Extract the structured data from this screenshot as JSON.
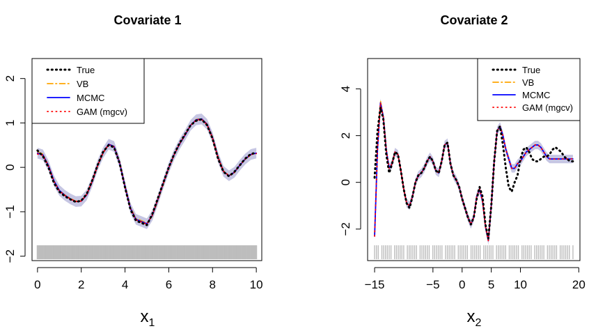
{
  "chart_data": [
    {
      "type": "line",
      "title": "Covariate 1",
      "xlabel": "x",
      "xlabel_sub": "1",
      "ylabel": "",
      "xlim": [
        0,
        10
      ],
      "ylim": [
        -2,
        2
      ],
      "x_ticks": [
        "0",
        "2",
        "4",
        "6",
        "8",
        "10"
      ],
      "y_ticks": [
        "−2",
        "−1",
        "0",
        "1",
        "2"
      ],
      "grid": false,
      "legend_position": "top-left",
      "x": [
        0.0,
        0.25,
        0.5,
        0.75,
        1.0,
        1.25,
        1.5,
        1.75,
        2.0,
        2.25,
        2.5,
        2.75,
        3.0,
        3.25,
        3.5,
        3.75,
        4.0,
        4.25,
        4.5,
        4.75,
        5.0,
        5.25,
        5.5,
        5.75,
        6.0,
        6.25,
        6.5,
        6.75,
        7.0,
        7.25,
        7.5,
        7.75,
        8.0,
        8.25,
        8.5,
        8.75,
        9.0,
        9.25,
        9.5,
        9.75,
        10.0
      ],
      "series": [
        {
          "name": "True",
          "style": "dotted",
          "color": "#000000",
          "values": [
            0.38,
            0.25,
            0.0,
            -0.35,
            -0.55,
            -0.65,
            -0.72,
            -0.78,
            -0.75,
            -0.6,
            -0.3,
            0.05,
            0.35,
            0.5,
            0.45,
            0.1,
            -0.45,
            -0.95,
            -1.2,
            -1.25,
            -1.3,
            -1.05,
            -0.7,
            -0.35,
            0.0,
            0.3,
            0.55,
            0.75,
            0.95,
            1.05,
            1.08,
            0.95,
            0.65,
            0.2,
            -0.1,
            -0.2,
            -0.1,
            0.05,
            0.2,
            0.3,
            0.33
          ]
        },
        {
          "name": "VB",
          "style": "dotdash",
          "color": "#FFA500",
          "values": [
            0.35,
            0.3,
            0.05,
            -0.3,
            -0.52,
            -0.62,
            -0.7,
            -0.76,
            -0.75,
            -0.62,
            -0.32,
            0.05,
            0.32,
            0.52,
            0.48,
            0.12,
            -0.42,
            -0.9,
            -1.15,
            -1.2,
            -1.25,
            -1.1,
            -0.75,
            -0.38,
            -0.02,
            0.28,
            0.52,
            0.72,
            0.95,
            1.08,
            1.1,
            0.98,
            0.68,
            0.25,
            -0.08,
            -0.18,
            -0.12,
            0.05,
            0.18,
            0.28,
            0.32
          ]
        },
        {
          "name": "MCMC",
          "style": "solid",
          "color": "#0000FF",
          "values": [
            0.32,
            0.28,
            0.04,
            -0.3,
            -0.52,
            -0.63,
            -0.71,
            -0.77,
            -0.76,
            -0.62,
            -0.32,
            0.05,
            0.33,
            0.52,
            0.47,
            0.11,
            -0.43,
            -0.92,
            -1.17,
            -1.22,
            -1.27,
            -1.08,
            -0.73,
            -0.36,
            -0.01,
            0.29,
            0.53,
            0.73,
            0.95,
            1.07,
            1.09,
            0.97,
            0.67,
            0.23,
            -0.09,
            -0.19,
            -0.11,
            0.05,
            0.19,
            0.29,
            0.32
          ]
        },
        {
          "name": "GAM (mgcv)",
          "style": "dotted",
          "color": "#FF0000",
          "values": [
            0.3,
            0.27,
            0.03,
            -0.31,
            -0.53,
            -0.63,
            -0.71,
            -0.77,
            -0.76,
            -0.61,
            -0.31,
            0.04,
            0.33,
            0.51,
            0.46,
            0.11,
            -0.44,
            -0.93,
            -1.18,
            -1.23,
            -1.28,
            -1.07,
            -0.72,
            -0.36,
            -0.01,
            0.29,
            0.54,
            0.74,
            0.95,
            1.06,
            1.08,
            0.96,
            0.66,
            0.22,
            -0.09,
            -0.19,
            -0.11,
            0.05,
            0.19,
            0.29,
            0.31
          ]
        }
      ],
      "band_width": 0.12,
      "rug_start": 0,
      "rug_end": 10,
      "legend": [
        "True",
        "VB",
        "MCMC",
        "GAM (mgcv)"
      ]
    },
    {
      "type": "line",
      "title": "Covariate 2",
      "xlabel": "x",
      "xlabel_sub": "2",
      "ylabel": "",
      "xlim": [
        -15,
        20
      ],
      "ylim": [
        -3,
        5
      ],
      "x_ticks": [
        "−15",
        "−5",
        "0",
        "5",
        "10",
        "20"
      ],
      "y_ticks": [
        "−2",
        "0",
        "2",
        "4"
      ],
      "grid": false,
      "legend_position": "top-right",
      "x": [
        -15,
        -14.5,
        -14,
        -13.5,
        -13,
        -12.5,
        -12,
        -11.5,
        -11,
        -10.5,
        -10,
        -9.5,
        -9,
        -8.5,
        -8,
        -7.5,
        -7,
        -6.5,
        -6,
        -5.5,
        -5,
        -4.5,
        -4,
        -3.5,
        -3,
        -2.5,
        -2,
        -1.5,
        -1,
        -0.5,
        0,
        0.5,
        1,
        1.5,
        2,
        2.5,
        3,
        3.5,
        4,
        4.5,
        5,
        5.5,
        6,
        6.5,
        7,
        7.5,
        8,
        8.5,
        9,
        9.5,
        10,
        10.5,
        11,
        11.5,
        12,
        12.5,
        13,
        13.5,
        14,
        14.5,
        15,
        15.5,
        16,
        16.5,
        17,
        17.5,
        18,
        18.5,
        19
      ],
      "series": [
        {
          "name": "True",
          "style": "dotted",
          "color": "#000000",
          "values": [
            0.2,
            2.2,
            3.2,
            2.7,
            1.2,
            0.4,
            0.8,
            1.3,
            1.2,
            0.5,
            -0.3,
            -0.9,
            -1.1,
            -0.6,
            0.0,
            0.3,
            0.4,
            0.6,
            0.9,
            1.1,
            0.9,
            0.5,
            0.4,
            0.9,
            1.6,
            1.7,
            0.8,
            0.3,
            0.1,
            -0.2,
            -0.7,
            -1.1,
            -1.5,
            -1.8,
            -1.5,
            -0.7,
            -0.2,
            -0.6,
            -1.8,
            -2.4,
            -1.0,
            0.9,
            2.2,
            2.4,
            1.6,
            0.6,
            -0.2,
            -0.4,
            0.0,
            0.3,
            1.0,
            1.4,
            1.5,
            1.3,
            1.0,
            0.9,
            0.9,
            1.0,
            1.1,
            1.1,
            1.2,
            1.4,
            1.5,
            1.4,
            1.3,
            1.1,
            1.0,
            0.9,
            0.9
          ]
        },
        {
          "name": "VB",
          "style": "dotdash",
          "color": "#FFA500",
          "values": [
            -2.2,
            1.5,
            3.5,
            2.8,
            1.4,
            0.6,
            0.8,
            1.3,
            1.2,
            0.5,
            -0.3,
            -0.9,
            -1.0,
            -0.6,
            0.0,
            0.3,
            0.4,
            0.6,
            0.9,
            1.1,
            0.9,
            0.5,
            0.4,
            0.9,
            1.6,
            1.7,
            0.8,
            0.3,
            0.1,
            -0.2,
            -0.7,
            -1.1,
            -1.5,
            -1.8,
            -1.5,
            -0.6,
            -0.3,
            -0.8,
            -1.9,
            -2.5,
            -1.0,
            0.9,
            2.2,
            2.4,
            2.0,
            1.4,
            1.0,
            0.6,
            0.6,
            0.8,
            0.9,
            1.1,
            1.3,
            1.4,
            1.5,
            1.6,
            1.6,
            1.5,
            1.3,
            1.1,
            1.0,
            1.0,
            1.0,
            1.0,
            1.0,
            1.0,
            1.0,
            1.0,
            1.0
          ]
        },
        {
          "name": "MCMC",
          "style": "solid",
          "color": "#0000FF",
          "values": [
            -2.3,
            1.4,
            3.4,
            2.8,
            1.4,
            0.6,
            0.8,
            1.3,
            1.2,
            0.5,
            -0.3,
            -0.9,
            -1.0,
            -0.6,
            0.0,
            0.3,
            0.4,
            0.6,
            0.9,
            1.1,
            0.9,
            0.5,
            0.4,
            0.9,
            1.6,
            1.7,
            0.8,
            0.3,
            0.1,
            -0.2,
            -0.7,
            -1.1,
            -1.5,
            -1.8,
            -1.5,
            -0.6,
            -0.3,
            -0.8,
            -1.9,
            -2.5,
            -1.0,
            0.9,
            2.2,
            2.4,
            2.0,
            1.4,
            1.0,
            0.6,
            0.6,
            0.8,
            0.9,
            1.1,
            1.3,
            1.4,
            1.5,
            1.6,
            1.6,
            1.5,
            1.3,
            1.1,
            1.0,
            1.0,
            1.0,
            1.0,
            1.0,
            1.0,
            1.0,
            1.0,
            1.0
          ]
        },
        {
          "name": "GAM (mgcv)",
          "style": "dotted",
          "color": "#FF0000",
          "values": [
            -2.3,
            1.4,
            3.4,
            2.8,
            1.4,
            0.6,
            0.8,
            1.3,
            1.2,
            0.5,
            -0.3,
            -0.9,
            -1.0,
            -0.6,
            0.0,
            0.3,
            0.4,
            0.6,
            0.9,
            1.1,
            0.9,
            0.5,
            0.4,
            0.9,
            1.6,
            1.7,
            0.8,
            0.3,
            0.1,
            -0.2,
            -0.7,
            -1.1,
            -1.5,
            -1.8,
            -1.5,
            -0.6,
            -0.3,
            -0.8,
            -1.9,
            -2.5,
            -1.0,
            0.9,
            2.2,
            2.4,
            2.0,
            1.4,
            1.0,
            0.6,
            0.6,
            0.8,
            0.9,
            1.1,
            1.3,
            1.4,
            1.5,
            1.6,
            1.6,
            1.5,
            1.3,
            1.1,
            1.0,
            1.0,
            1.0,
            1.0,
            1.0,
            1.0,
            1.0,
            1.0,
            1.0
          ]
        }
      ],
      "band_width": 0.18,
      "rug_start": -15,
      "rug_end": 19,
      "legend": [
        "True",
        "VB",
        "MCMC",
        "GAM (mgcv)"
      ]
    }
  ]
}
